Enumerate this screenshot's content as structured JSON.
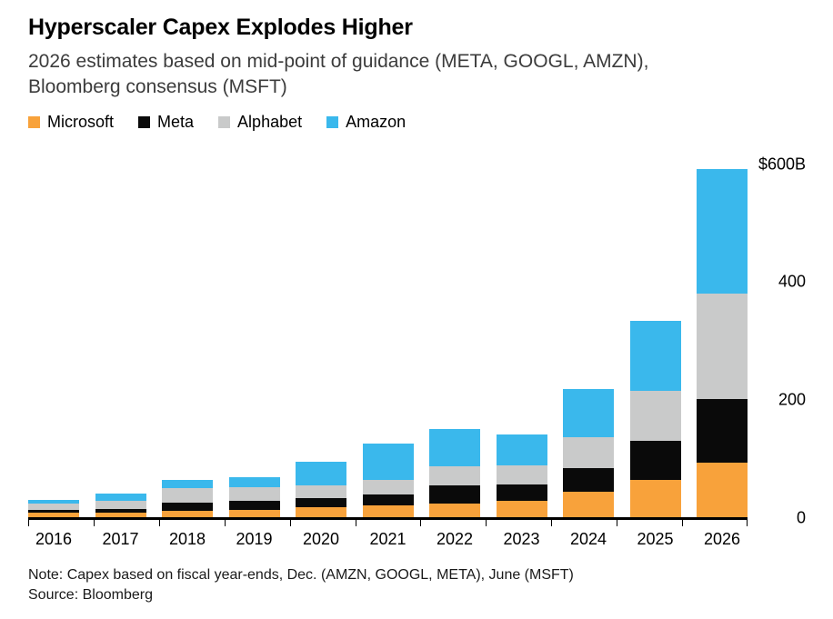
{
  "title": "Hyperscaler Capex Explodes Higher",
  "subtitle": "2026 estimates based on mid-point of guidance (META, GOOGL, AMZN),\nBloomberg consensus (MSFT)",
  "legend": [
    {
      "label": "Microsoft",
      "color": "#F8A23B"
    },
    {
      "label": "Meta",
      "color": "#0a0a0a"
    },
    {
      "label": "Alphabet",
      "color": "#c9caca"
    },
    {
      "label": "Amazon",
      "color": "#3ab8ec"
    }
  ],
  "note": "Note: Capex based on fiscal year-ends, Dec. (AMZN, GOOGL, META), June (MSFT)",
  "source": "Source: Bloomberg",
  "chart_data": {
    "type": "bar",
    "stacked": true,
    "title": "Hyperscaler Capex Explodes Higher",
    "categories": [
      "2016",
      "2017",
      "2018",
      "2019",
      "2020",
      "2021",
      "2022",
      "2023",
      "2024",
      "2025",
      "2026"
    ],
    "series": [
      {
        "name": "Microsoft",
        "color": "#F8A23B",
        "values": [
          9.0,
          8.7,
          11.6,
          13.9,
          17.6,
          20.6,
          23.9,
          28.1,
          44.5,
          64.6,
          94.0
        ]
      },
      {
        "name": "Meta",
        "color": "#0a0a0a",
        "values": [
          4.5,
          6.7,
          13.9,
          15.1,
          15.7,
          19.2,
          31.4,
          28.1,
          39.2,
          66.5,
          107.0
        ]
      },
      {
        "name": "Alphabet",
        "color": "#c9caca",
        "values": [
          10.2,
          13.2,
          25.1,
          23.5,
          22.3,
          24.6,
          31.5,
          32.3,
          52.5,
          85.0,
          180.0
        ]
      },
      {
        "name": "Amazon",
        "color": "#3ab8ec",
        "values": [
          6.7,
          11.9,
          13.4,
          16.9,
          40.1,
          61.1,
          63.6,
          52.7,
          83.0,
          118.0,
          210.0
        ]
      }
    ],
    "xlabel": "",
    "ylabel": "",
    "y_axis": {
      "max": 600,
      "ticks": [
        0,
        200,
        400,
        600
      ],
      "tick_labels": [
        "0",
        "200",
        "400",
        "$600B"
      ]
    },
    "legend_position": "top",
    "grid": false
  }
}
